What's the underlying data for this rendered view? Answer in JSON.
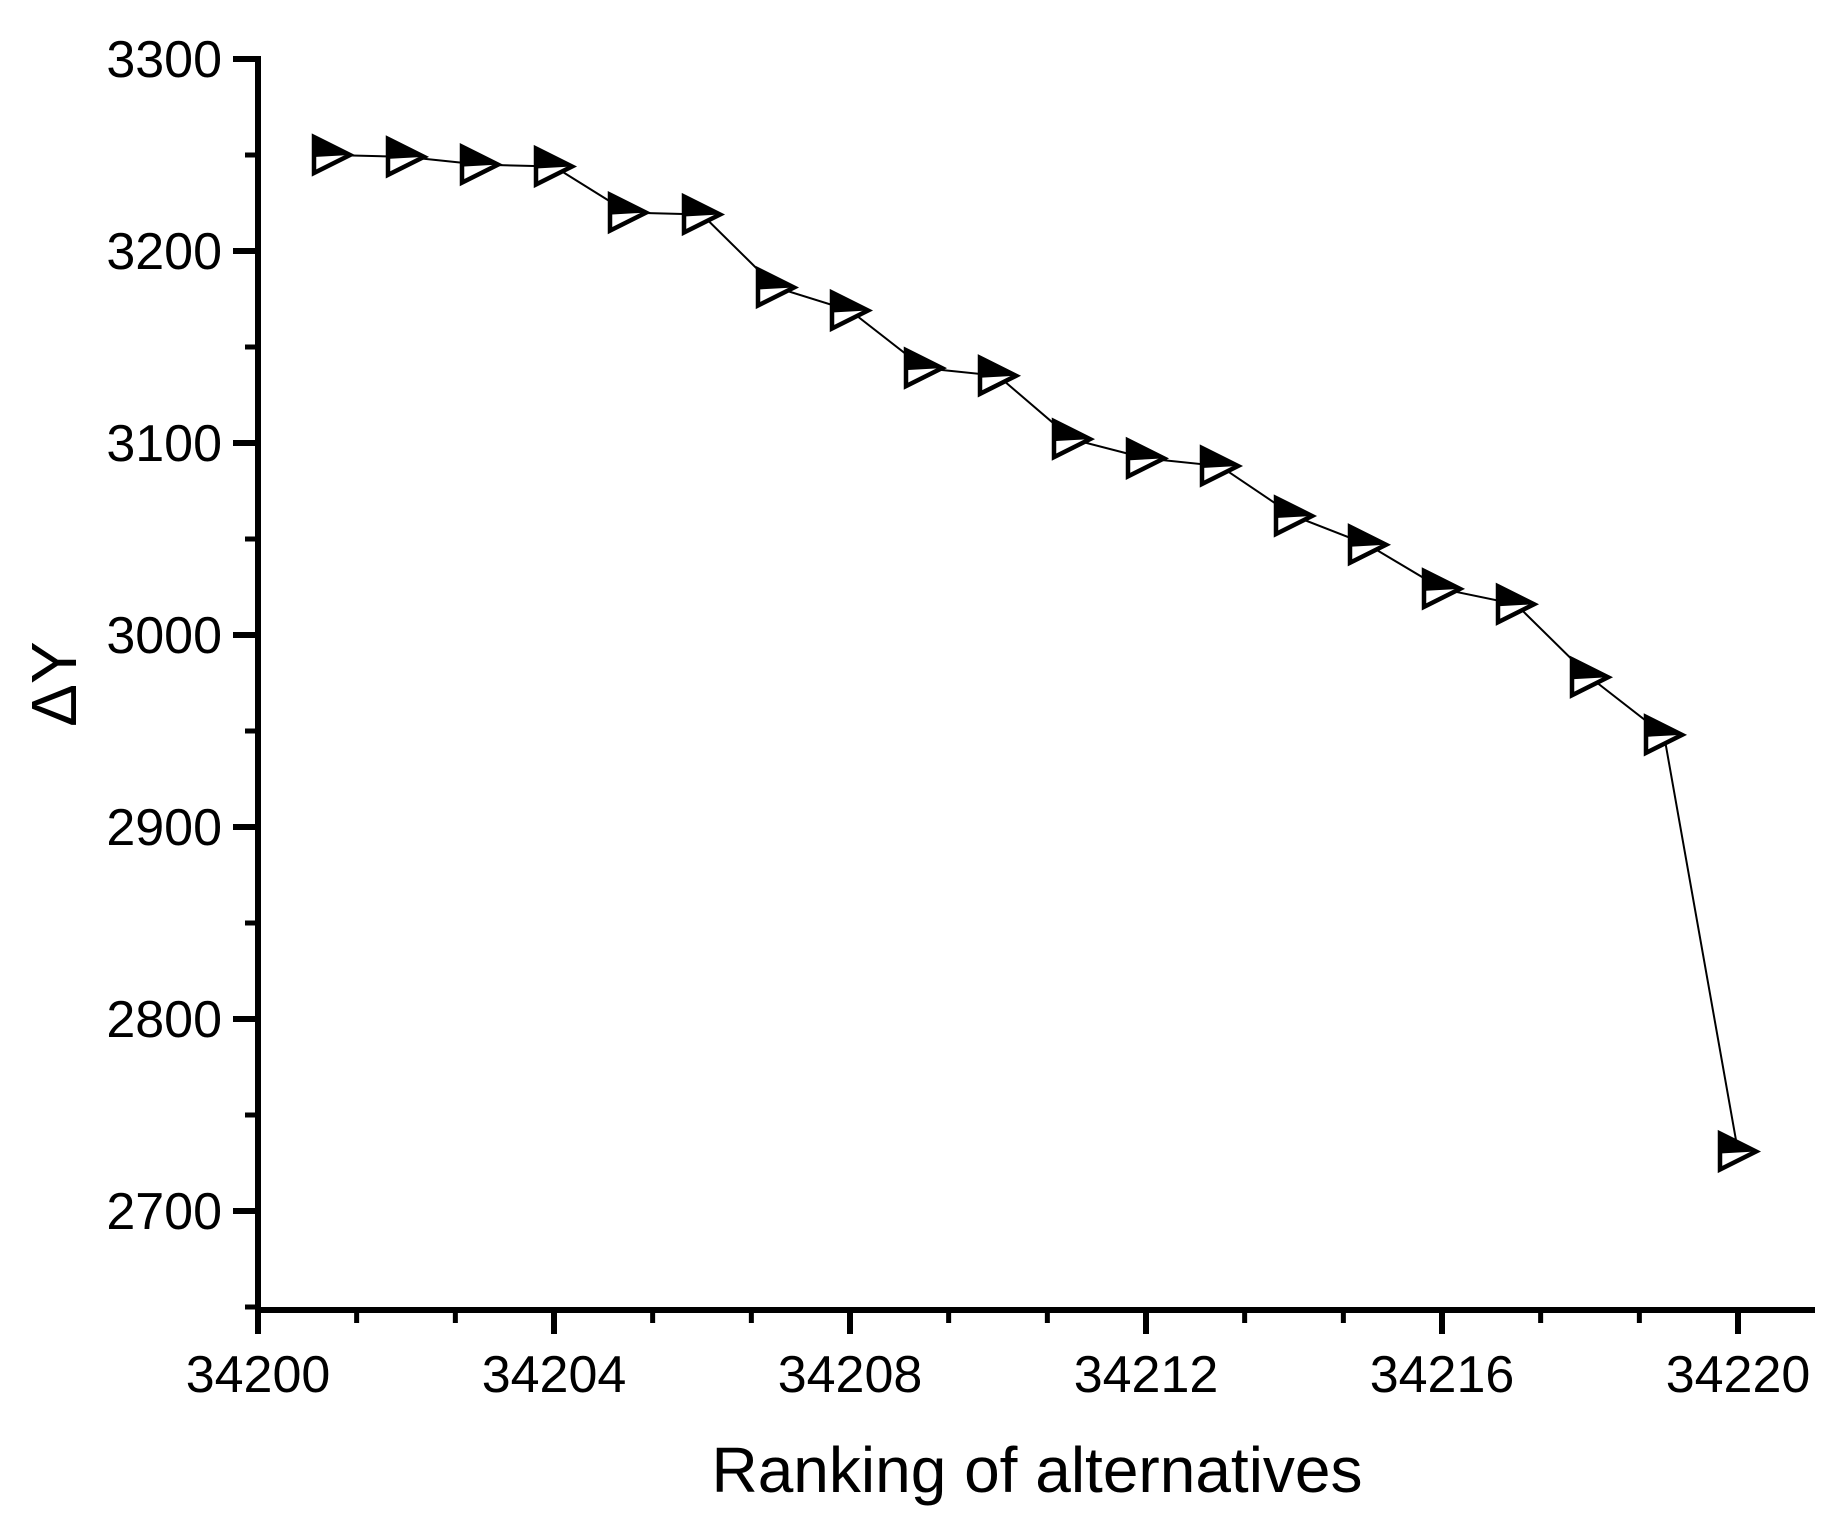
{
  "chart_data": {
    "type": "line+scatter",
    "title": "",
    "xlabel": "Ranking of alternatives",
    "ylabel": "ΔY",
    "x": [
      34201,
      34202,
      34203,
      34204,
      34205,
      34206,
      34207,
      34208,
      34209,
      34210,
      34211,
      34212,
      34213,
      34214,
      34215,
      34216,
      34217,
      34218,
      34219,
      34220
    ],
    "y": [
      3250,
      3249,
      3245,
      3244,
      3220,
      3219,
      3181,
      3169,
      3139,
      3135,
      3102,
      3092,
      3088,
      3062,
      3047,
      3024,
      3016,
      2978,
      2948,
      2731
    ],
    "xlim": [
      34200,
      34221
    ],
    "ylim": [
      2648,
      3300
    ],
    "x_major_ticks": [
      34200,
      34204,
      34208,
      34212,
      34216,
      34220
    ],
    "x_minor_ticks": [
      34201.333,
      34202.667,
      34205.333,
      34206.667,
      34209.333,
      34210.667,
      34213.333,
      34214.667,
      34217.333,
      34218.667
    ],
    "y_major_ticks": [
      3300,
      3200,
      3100,
      3000,
      2900,
      2800,
      2700
    ],
    "y_minor_ticks": [
      3250,
      3150,
      3050,
      2950,
      2850,
      2750,
      2650
    ],
    "grid": false,
    "legend": null,
    "marker": "right-triangle-half-filled-top",
    "marker_color": "#000000",
    "line_color": "#000000",
    "axis_color": "#000000",
    "background": "#ffffff"
  }
}
